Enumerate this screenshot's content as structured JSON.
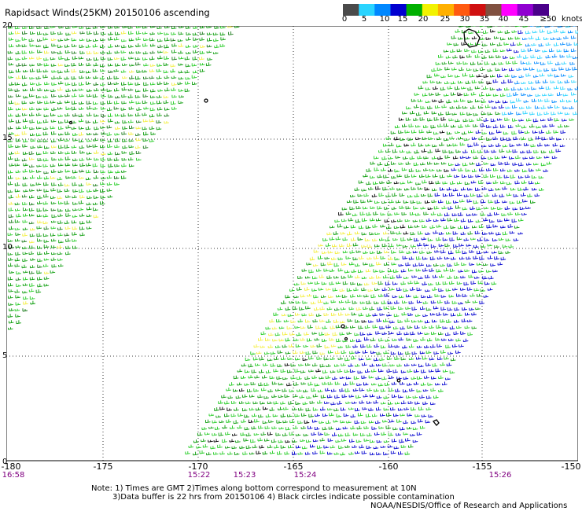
{
  "title": "Rapidsact Winds(25KM) 20150106 ascending",
  "colorbar": {
    "labels": [
      "0",
      "5",
      "10",
      "15",
      "20",
      "25",
      "30",
      "35",
      "40",
      "45",
      "≥50"
    ],
    "unit": "knots",
    "colors": [
      "#4a4a4a",
      "#2ad4ff",
      "#0088ff",
      "#0000d0",
      "#00b000",
      "#f2f200",
      "#ffb000",
      "#ff5a10",
      "#d01010",
      "#805040",
      "#ff00ff",
      "#9000d0",
      "#4a008a"
    ]
  },
  "map": {
    "lat_labels": [
      "20",
      "15",
      "10",
      "5",
      "0"
    ],
    "lon_labels": [
      "-180",
      "-175",
      "-170",
      "-165",
      "-160",
      "-155",
      "-150"
    ],
    "time_labels": [
      "16:58",
      "15:22",
      "15:23",
      "15:24",
      "15:26"
    ]
  },
  "notes": [
    "Note: 1) Times are GMT 2)Times along bottom correspond to measurement at 10N",
    "3)Data buffer is 22 hrs from 20150106 4) Black circles indicate possible contamination"
  ],
  "credit": "NOAA/NESDIS/Office of Research and Applications"
}
